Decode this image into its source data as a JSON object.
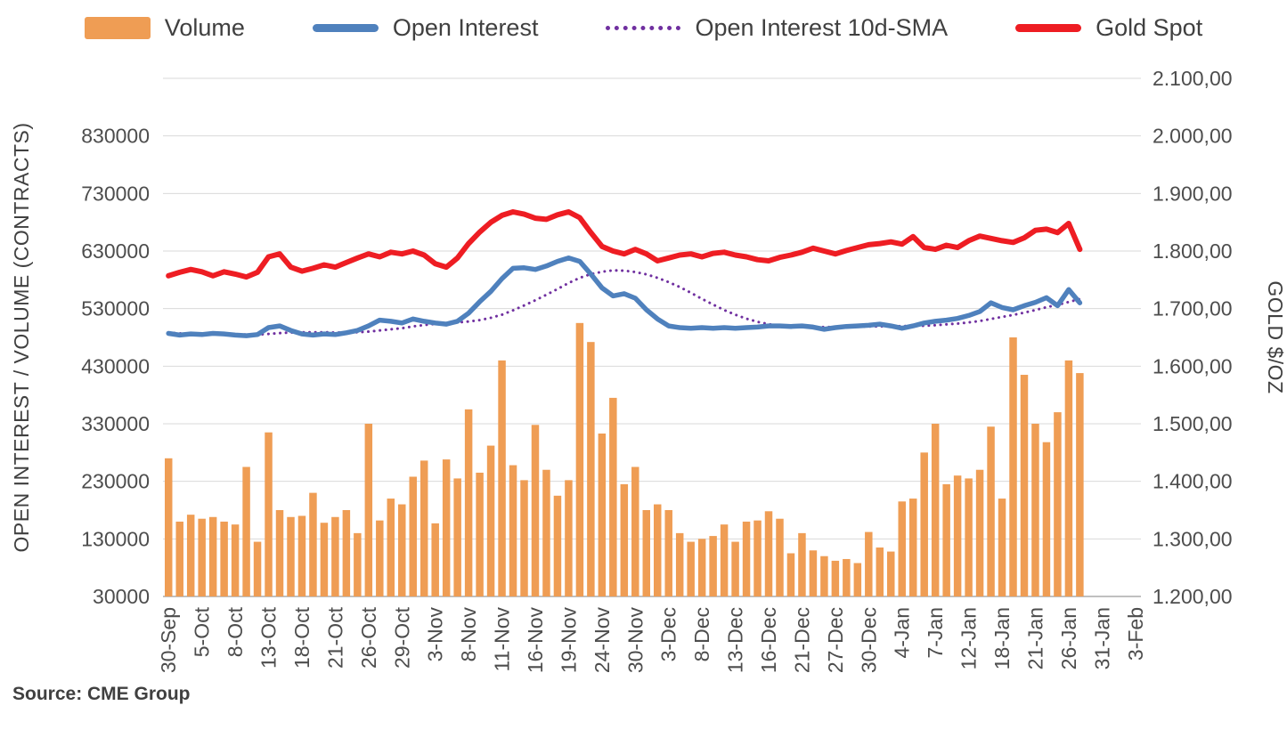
{
  "source_note": "Source: CME Group",
  "legend": [
    {
      "label": "Volume",
      "type": "bar",
      "color": "#EF9D54"
    },
    {
      "label": "Open Interest",
      "type": "line",
      "color": "#4F81BD"
    },
    {
      "label": "Open Interest 10d-SMA",
      "type": "dotted",
      "color": "#7030A0"
    },
    {
      "label": "Gold Spot",
      "type": "line",
      "color": "#EE1D23"
    }
  ],
  "chart_data": {
    "type": "combo",
    "grid": true,
    "legend_position": "top",
    "left_axis": {
      "title": "OPEN INTEREST / VOLUME (CONTRACTS)",
      "min": 30000,
      "max": 930000,
      "ticks": [
        {
          "label": "830000",
          "value": 830000
        },
        {
          "label": "730000",
          "value": 730000
        },
        {
          "label": "630000",
          "value": 630000
        },
        {
          "label": "530000",
          "value": 530000
        },
        {
          "label": "430000",
          "value": 430000
        },
        {
          "label": "330000",
          "value": 330000
        },
        {
          "label": "230000",
          "value": 230000
        },
        {
          "label": "130000",
          "value": 130000
        },
        {
          "label": "30000",
          "value": 30000
        }
      ]
    },
    "right_axis": {
      "title": "GOLD $/OZ",
      "min": 1200,
      "max": 2100,
      "ticks": [
        {
          "label": "2.100,00",
          "value": 2100
        },
        {
          "label": "2.000,00",
          "value": 2000
        },
        {
          "label": "1.900,00",
          "value": 1900
        },
        {
          "label": "1.800,00",
          "value": 1800
        },
        {
          "label": "1.700,00",
          "value": 1700
        },
        {
          "label": "1.600,00",
          "value": 1600
        },
        {
          "label": "1.500,00",
          "value": 1500
        },
        {
          "label": "1.400,00",
          "value": 1400
        },
        {
          "label": "1.300,00",
          "value": 1300
        },
        {
          "label": "1.200,00",
          "value": 1200
        }
      ]
    },
    "x_axis": {
      "total_slots": 88,
      "tick_every": 3,
      "tick_labels": [
        "30-Sep",
        "5-Oct",
        "8-Oct",
        "13-Oct",
        "18-Oct",
        "21-Oct",
        "26-Oct",
        "29-Oct",
        "3-Nov",
        "8-Nov",
        "11-Nov",
        "16-Nov",
        "19-Nov",
        "24-Nov",
        "30-Nov",
        "3-Dec",
        "8-Dec",
        "13-Dec",
        "16-Dec",
        "21-Dec",
        "27-Dec",
        "30-Dec",
        "4-Jan",
        "7-Jan",
        "12-Jan",
        "18-Jan",
        "21-Jan",
        "26-Jan",
        "31-Jan",
        "3-Feb"
      ]
    },
    "series": [
      {
        "name": "Volume",
        "type": "bar",
        "axis": "left",
        "color": "#EF9D54",
        "values": [
          270000,
          160000,
          172000,
          165000,
          168000,
          160000,
          155000,
          255000,
          125000,
          315000,
          180000,
          168000,
          170000,
          210000,
          158000,
          168000,
          180000,
          140000,
          330000,
          162000,
          200000,
          190000,
          238000,
          266000,
          157000,
          268000,
          235000,
          355000,
          245000,
          292000,
          440000,
          258000,
          232000,
          328000,
          250000,
          205000,
          232000,
          505000,
          472000,
          313000,
          375000,
          225000,
          255000,
          180000,
          190000,
          180000,
          140000,
          125000,
          130000,
          135000,
          155000,
          125000,
          160000,
          162000,
          178000,
          165000,
          105000,
          140000,
          110000,
          100000,
          92000,
          95000,
          88000,
          142000,
          115000,
          108000,
          195000,
          200000,
          280000,
          330000,
          225000,
          240000,
          235000,
          250000,
          325000,
          200000,
          480000,
          415000,
          330000,
          298000,
          350000,
          440000,
          418000
        ]
      },
      {
        "name": "Open Interest",
        "type": "line",
        "axis": "left",
        "color": "#4F81BD",
        "width": 5.5,
        "values": [
          487000,
          484000,
          486000,
          485000,
          487000,
          486000,
          484000,
          483000,
          485000,
          497000,
          500000,
          492000,
          486000,
          484000,
          486000,
          485000,
          488000,
          492000,
          500000,
          510000,
          508000,
          505000,
          512000,
          508000,
          505000,
          503000,
          508000,
          522000,
          542000,
          560000,
          582000,
          600000,
          601000,
          598000,
          604000,
          612000,
          618000,
          612000,
          590000,
          566000,
          552000,
          556000,
          548000,
          528000,
          512000,
          500000,
          497000,
          496000,
          497000,
          496000,
          497000,
          496000,
          497000,
          498000,
          500000,
          500000,
          499000,
          500000,
          498000,
          494000,
          497000,
          499000,
          500000,
          501000,
          503000,
          500000,
          496000,
          500000,
          505000,
          508000,
          510000,
          513000,
          518000,
          525000,
          540000,
          532000,
          528000,
          535000,
          541000,
          549000,
          535000,
          563000,
          540000
        ]
      },
      {
        "name": "Open Interest 10d-SMA",
        "type": "line",
        "dash": "dotted",
        "axis": "left",
        "color": "#7030A0",
        "width": 3,
        "values": [
          488000,
          487000,
          486500,
          486000,
          486000,
          486000,
          485500,
          485000,
          485000,
          486000,
          487500,
          488500,
          489000,
          489000,
          489000,
          488500,
          488500,
          489000,
          490000,
          492000,
          494000,
          496000,
          499000,
          501500,
          503500,
          505000,
          506000,
          507500,
          510000,
          514000,
          519500,
          527000,
          535500,
          544500,
          554000,
          564000,
          574500,
          583500,
          590000,
          594000,
          596500,
          596000,
          593500,
          589500,
          583500,
          576000,
          567500,
          557500,
          547000,
          537000,
          527500,
          519500,
          512500,
          507000,
          503000,
          500000,
          498500,
          498000,
          498000,
          498000,
          498200,
          498300,
          498500,
          498800,
          499200,
          499500,
          499700,
          499800,
          500300,
          501200,
          502500,
          504000,
          506000,
          508500,
          512000,
          515500,
          519000,
          523000,
          527500,
          532500,
          536500,
          541500,
          546500
        ]
      },
      {
        "name": "Gold Spot",
        "type": "line",
        "axis": "right",
        "color": "#EE1D23",
        "width": 6,
        "values": [
          1757,
          1763,
          1768,
          1764,
          1757,
          1764,
          1760,
          1755,
          1763,
          1790,
          1795,
          1772,
          1765,
          1770,
          1776,
          1772,
          1780,
          1788,
          1795,
          1790,
          1798,
          1795,
          1800,
          1793,
          1778,
          1772,
          1788,
          1813,
          1833,
          1850,
          1862,
          1868,
          1864,
          1857,
          1855,
          1863,
          1868,
          1858,
          1832,
          1808,
          1800,
          1795,
          1803,
          1795,
          1783,
          1788,
          1793,
          1795,
          1790,
          1796,
          1798,
          1793,
          1790,
          1785,
          1783,
          1789,
          1793,
          1798,
          1805,
          1800,
          1795,
          1801,
          1806,
          1811,
          1813,
          1816,
          1812,
          1825,
          1806,
          1803,
          1810,
          1806,
          1818,
          1826,
          1822,
          1818,
          1815,
          1823,
          1836,
          1838,
          1832,
          1848,
          1803
        ]
      }
    ]
  }
}
